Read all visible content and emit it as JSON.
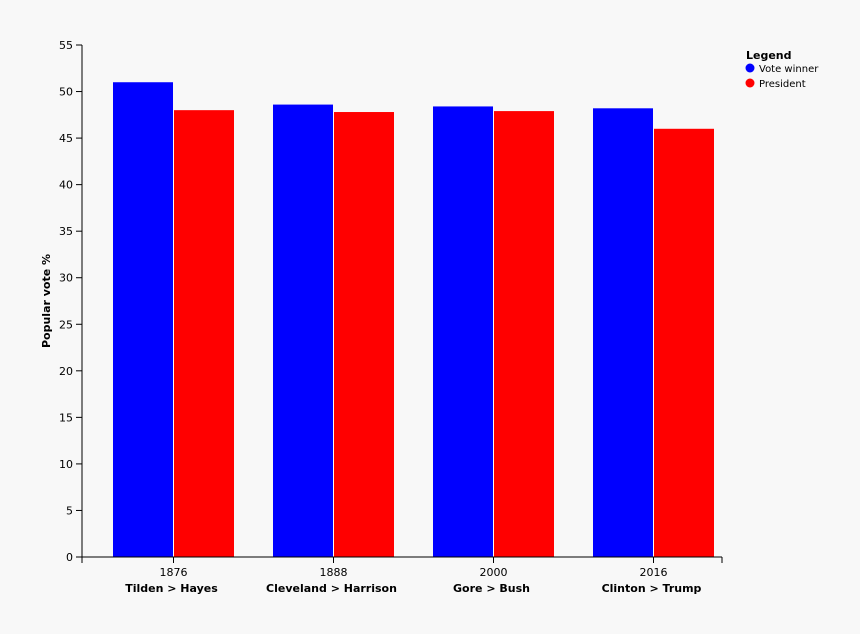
{
  "chart_data": {
    "type": "bar",
    "categories": [
      "1876",
      "1888",
      "2000",
      "2016"
    ],
    "category_sublabels": [
      "Tilden > Hayes",
      "Cleveland > Harrison",
      "Gore > Bush",
      "Clinton > Trump"
    ],
    "series": [
      {
        "name": "Vote winner",
        "color": "#0000ff",
        "values": [
          51.0,
          48.6,
          48.4,
          48.2
        ]
      },
      {
        "name": "President",
        "color": "#ff0000",
        "values": [
          48.0,
          47.8,
          47.9,
          46.0
        ]
      }
    ],
    "ylabel": "Popular vote %",
    "ylim": [
      0,
      55
    ],
    "yticks": [
      0,
      5,
      10,
      15,
      20,
      25,
      30,
      35,
      40,
      45,
      50,
      55
    ],
    "legend": {
      "title": "Legend",
      "position": "top-right"
    },
    "grid": false
  }
}
